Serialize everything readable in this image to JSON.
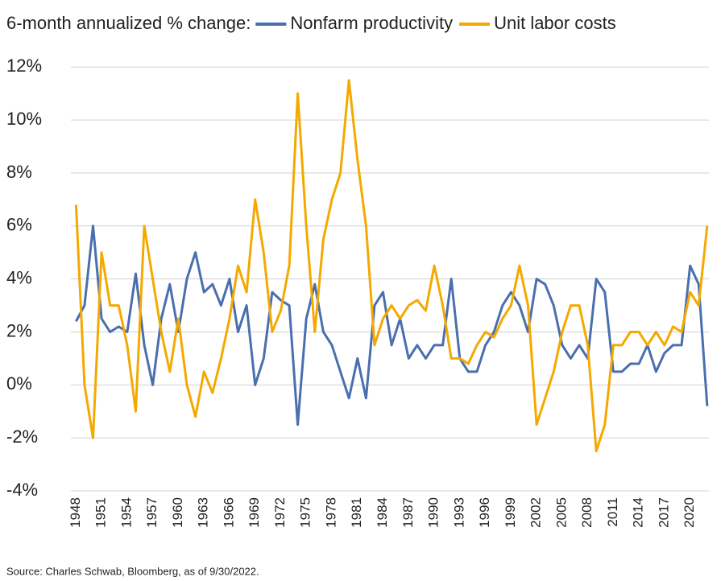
{
  "chart_data": {
    "type": "line",
    "title": "6-month annualized % change:",
    "source": "Source: Charles Schwab, Bloomberg, as of 9/30/2022.",
    "x": [
      1948,
      1949,
      1950,
      1951,
      1952,
      1953,
      1954,
      1955,
      1956,
      1957,
      1958,
      1959,
      1960,
      1961,
      1962,
      1963,
      1964,
      1965,
      1966,
      1967,
      1968,
      1969,
      1970,
      1971,
      1972,
      1973,
      1974,
      1975,
      1976,
      1977,
      1978,
      1979,
      1980,
      1981,
      1982,
      1983,
      1984,
      1985,
      1986,
      1987,
      1988,
      1989,
      1990,
      1991,
      1992,
      1993,
      1994,
      1995,
      1996,
      1997,
      1998,
      1999,
      2000,
      2001,
      2002,
      2003,
      2004,
      2005,
      2006,
      2007,
      2008,
      2009,
      2010,
      2011,
      2012,
      2013,
      2014,
      2015,
      2016,
      2017,
      2018,
      2019,
      2020,
      2021,
      2022
    ],
    "series": [
      {
        "name": "Nonfarm productivity",
        "color": "#4a6fae",
        "values": [
          2.4,
          3.0,
          6.0,
          2.5,
          2.0,
          2.2,
          2.0,
          4.2,
          1.5,
          0.0,
          2.5,
          3.8,
          2.0,
          4.0,
          5.0,
          3.5,
          3.8,
          3.0,
          4.0,
          2.0,
          3.0,
          0.0,
          1.0,
          3.5,
          3.2,
          3.0,
          -1.5,
          2.5,
          3.8,
          2.0,
          1.5,
          0.5,
          -0.5,
          1.0,
          -0.5,
          3.0,
          3.5,
          1.5,
          2.5,
          1.0,
          1.5,
          1.0,
          1.5,
          1.5,
          4.0,
          1.0,
          0.5,
          0.5,
          1.5,
          2.0,
          3.0,
          3.5,
          3.0,
          2.0,
          4.0,
          3.8,
          3.0,
          1.5,
          1.0,
          1.5,
          1.0,
          4.0,
          3.5,
          0.5,
          0.5,
          0.8,
          0.8,
          1.5,
          0.5,
          1.2,
          1.5,
          1.5,
          4.5,
          3.8,
          -0.8
        ]
      },
      {
        "name": "Unit labor costs",
        "color": "#f4a900",
        "values": [
          6.8,
          0.0,
          -2.0,
          5.0,
          3.0,
          3.0,
          1.5,
          -1.0,
          6.0,
          4.0,
          2.0,
          0.5,
          2.5,
          0.0,
          -1.2,
          0.5,
          -0.3,
          1.0,
          2.5,
          4.5,
          3.5,
          7.0,
          5.0,
          2.0,
          2.8,
          4.5,
          11.0,
          6.0,
          2.0,
          5.5,
          7.0,
          8.0,
          11.5,
          8.5,
          6.0,
          1.5,
          2.5,
          3.0,
          2.5,
          3.0,
          3.2,
          2.8,
          4.5,
          3.0,
          1.0,
          1.0,
          0.8,
          1.5,
          2.0,
          1.8,
          2.5,
          3.0,
          4.5,
          3.0,
          -1.5,
          -0.5,
          0.5,
          2.0,
          3.0,
          3.0,
          1.5,
          -2.5,
          -1.5,
          1.5,
          1.5,
          2.0,
          2.0,
          1.5,
          2.0,
          1.5,
          2.2,
          2.0,
          3.5,
          3.0,
          6.0
        ]
      }
    ],
    "xlim": [
      1947.4,
      2022.2
    ],
    "xticks": [
      1948,
      1951,
      1954,
      1957,
      1960,
      1963,
      1966,
      1969,
      1972,
      1975,
      1978,
      1981,
      1984,
      1987,
      1990,
      1993,
      1996,
      1999,
      2002,
      2005,
      2008,
      2011,
      2014,
      2017,
      2020
    ],
    "ylim": [
      -4,
      12.1
    ],
    "yticks": [
      {
        "value": -4,
        "label": "-4%"
      },
      {
        "value": -2,
        "label": "-2%"
      },
      {
        "value": 0,
        "label": "0%"
      },
      {
        "value": 2,
        "label": "2%"
      },
      {
        "value": 4,
        "label": "4%"
      },
      {
        "value": 6,
        "label": "6%"
      },
      {
        "value": 8,
        "label": "8%"
      },
      {
        "value": 10,
        "label": "10%"
      },
      {
        "value": 12,
        "label": "12%"
      }
    ],
    "grid": true
  }
}
